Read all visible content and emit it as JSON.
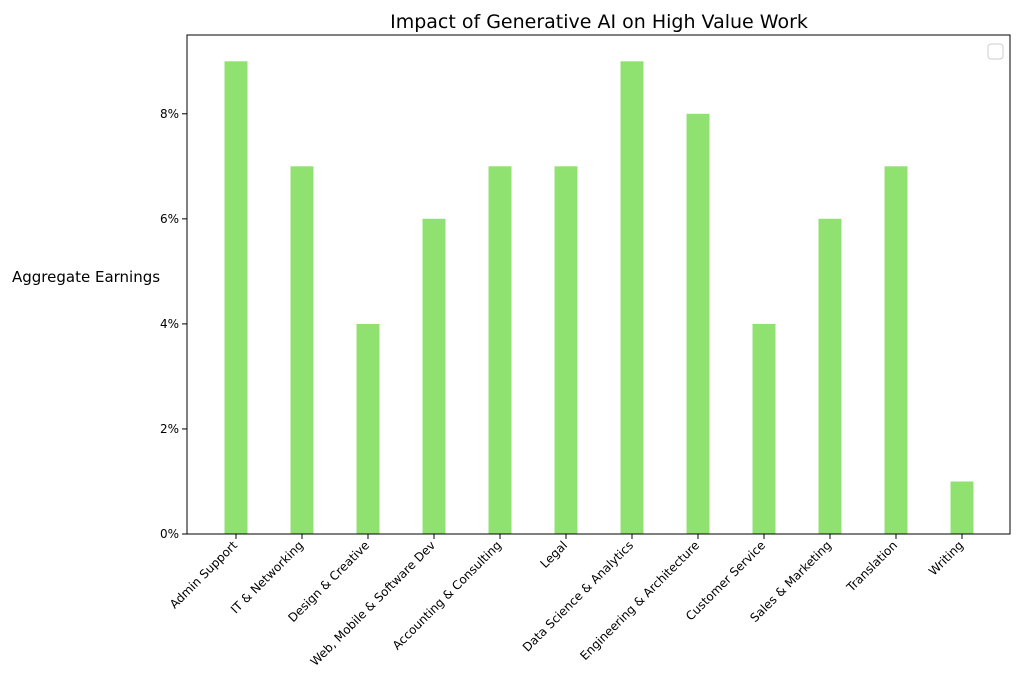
{
  "chart_data": {
    "type": "bar",
    "title": "Impact of Generative AI on High Value Work",
    "xlabel": "",
    "ylabel": "Aggregate Earnings",
    "categories": [
      "Admin Support",
      "IT & Networking",
      "Design & Creative",
      "Web, Mobile & Software Dev",
      "Accounting & Consulting",
      "Legal",
      "Data Science & Analytics",
      "Engineering & Architecture",
      "Customer Service",
      "Sales & Marketing",
      "Translation",
      "Writing"
    ],
    "values": [
      9,
      7,
      4,
      6,
      7,
      7,
      9,
      8,
      4,
      6,
      7,
      1
    ],
    "value_unit": "%",
    "ylim": [
      0,
      9.5
    ],
    "yticks": [
      0,
      2,
      4,
      6,
      8
    ],
    "ytick_labels": [
      "0%",
      "2%",
      "4%",
      "6%",
      "8%"
    ],
    "grid": false,
    "legend": {
      "placement": "top-right",
      "entries": []
    },
    "bar_color": "#90e270"
  }
}
